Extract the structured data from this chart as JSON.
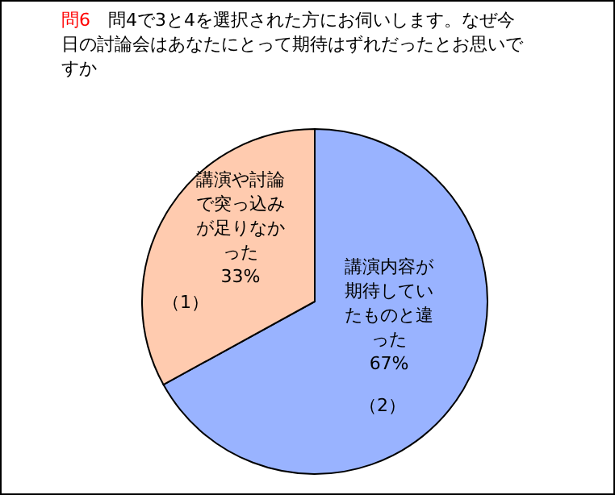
{
  "chart_data": {
    "type": "pie",
    "title": "問6",
    "subtitle": "問4で3と4を選択された方にお伺いします。なぜ今日の討論会はあなたにとって期待はずれだったとお思いですか",
    "categories": [
      "講演内容が期待していたものと違った",
      "講演や討論で突っ込みが足りなかった"
    ],
    "values": [
      67,
      33
    ],
    "colors": [
      "#99b3ff",
      "#ffcbaf"
    ],
    "value_labels": [
      "67%",
      "33%"
    ],
    "annotations": [
      "（2）",
      "（1）"
    ]
  }
}
